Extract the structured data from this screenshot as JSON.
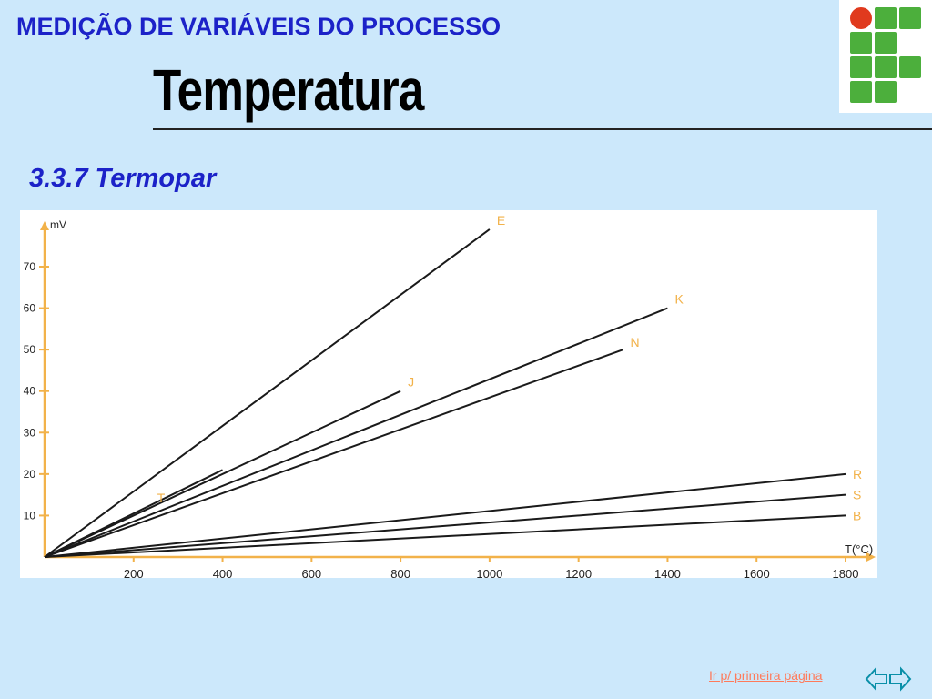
{
  "header": {
    "section_title": "MEDIÇÃO DE VARIÁVEIS DO PROCESSO"
  },
  "page": {
    "title": "Temperatura",
    "subtitle": "3.3.7 Termopar"
  },
  "logo": {
    "icon": "institute-logo-icon",
    "square_color": "#4caf3c",
    "dot_color": "#e03a1e"
  },
  "chart_data": {
    "type": "line",
    "ylabel": "mV",
    "xlabel": "T(°C)",
    "x_ticks": [
      200,
      400,
      600,
      800,
      1000,
      1200,
      1400,
      1600,
      1800
    ],
    "y_ticks": [
      10,
      20,
      30,
      40,
      50,
      60,
      70
    ],
    "xlim": [
      0,
      1800
    ],
    "ylim": [
      0,
      80
    ],
    "grid": false,
    "series": [
      {
        "name": "E",
        "x": [
          0,
          1000
        ],
        "y": [
          0,
          79
        ]
      },
      {
        "name": "J",
        "x": [
          0,
          800
        ],
        "y": [
          0,
          40
        ]
      },
      {
        "name": "T",
        "x": [
          0,
          400
        ],
        "y": [
          0,
          21
        ]
      },
      {
        "name": "K",
        "x": [
          0,
          1400
        ],
        "y": [
          0,
          60
        ]
      },
      {
        "name": "N",
        "x": [
          0,
          1300
        ],
        "y": [
          0,
          50
        ]
      },
      {
        "name": "R",
        "x": [
          0,
          1800
        ],
        "y": [
          0,
          20
        ]
      },
      {
        "name": "S",
        "x": [
          0,
          1800
        ],
        "y": [
          0,
          15
        ]
      },
      {
        "name": "B",
        "x": [
          0,
          1800
        ],
        "y": [
          0,
          10
        ]
      }
    ]
  },
  "footer": {
    "link_text": "Ir p/ primeira página",
    "nav_icon": "back-forward-arrows-icon"
  },
  "colors": {
    "background": "#cce8fb",
    "heading": "#1c22c8",
    "link": "#ff7a5a"
  }
}
